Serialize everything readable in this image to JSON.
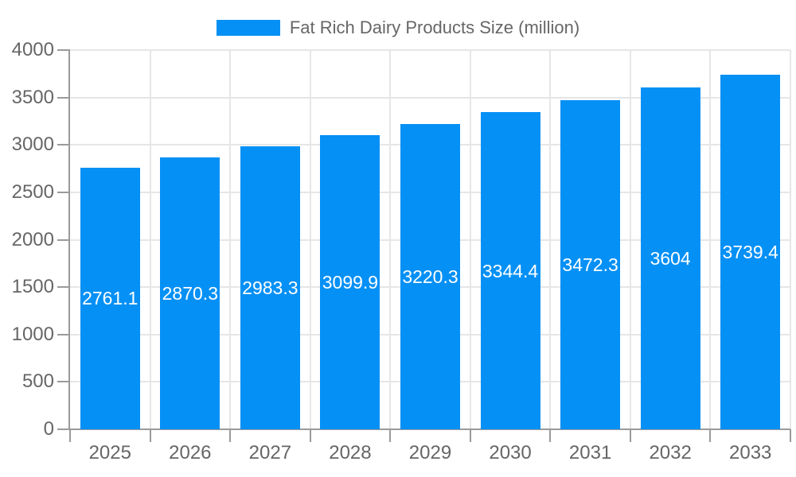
{
  "legend": {
    "label": "Fat Rich Dairy Products Size (million)"
  },
  "chart_data": {
    "type": "bar",
    "title": "Fat Rich Dairy Products Size (million)",
    "series_name": "Fat Rich Dairy Products Size (million)",
    "categories": [
      "2025",
      "2026",
      "2027",
      "2028",
      "2029",
      "2030",
      "2031",
      "2032",
      "2033"
    ],
    "values": [
      2761.1,
      2870.3,
      2983.3,
      3099.9,
      3220.3,
      3344.4,
      3472.3,
      3604,
      3739.4
    ],
    "value_labels": [
      "2761.1",
      "2870.3",
      "2983.3",
      "3099.9",
      "3220.3",
      "3344.4",
      "3472.3",
      "3604",
      "3739.4"
    ],
    "xlabel": "",
    "ylabel": "",
    "ylim": [
      0,
      4000
    ],
    "yticks": [
      0,
      500,
      1000,
      1500,
      2000,
      2500,
      3000,
      3500,
      4000
    ],
    "grid": true,
    "legend_position": "top",
    "colors": {
      "bar": "#0590f5",
      "bar_label_text": "#ffffff",
      "axis_line": "#9a9a9a",
      "gridline": "#e6e6e6",
      "axis_text": "#666666",
      "background": "#ffffff"
    }
  }
}
